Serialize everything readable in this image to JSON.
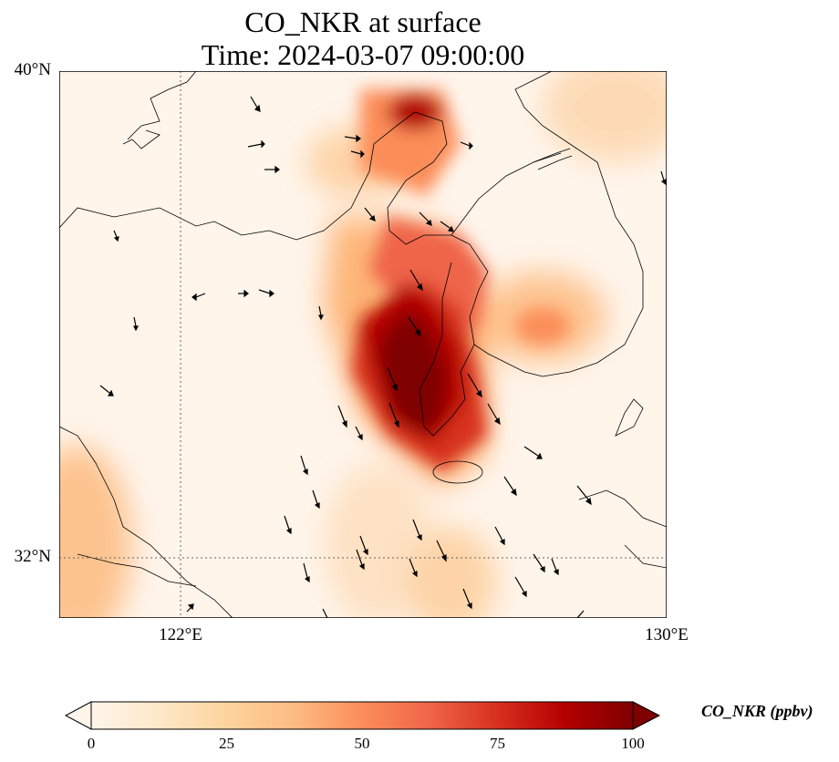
{
  "map": {
    "title": "CO_NKR at surface",
    "subtitle": "Time: 2024-03-07 09:00:00",
    "lat_labels": [
      "40°N",
      "32°N"
    ],
    "lon_labels": [
      "122°E",
      "130°E"
    ],
    "extent": {
      "lon_min": 120,
      "lon_max": 130,
      "lat_min": 31,
      "lat_max": 40
    },
    "gridlines": {
      "lon": [
        122
      ],
      "lat": [
        32
      ],
      "style": "dotted"
    },
    "colors": {
      "low": "#fff5eb",
      "mid": "#fd8d3c",
      "high": "#7f0000"
    }
  },
  "colorbar": {
    "label": "CO_NKR (ppbv)",
    "ticks": [
      "0",
      "25",
      "50",
      "75",
      "100"
    ],
    "min": 0,
    "max": 100,
    "extend": "both",
    "colormap": "OrRd"
  }
}
